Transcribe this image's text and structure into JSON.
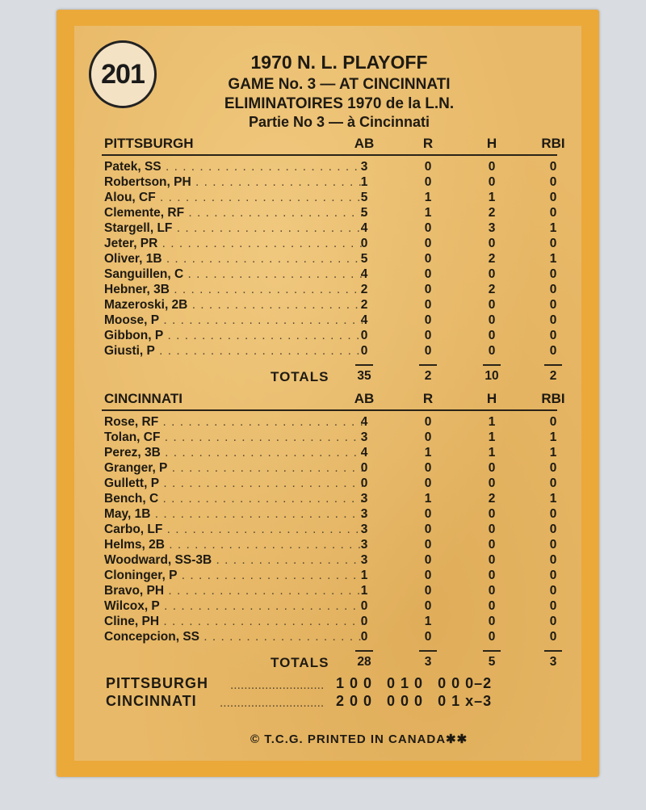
{
  "card_number": "201",
  "title": {
    "line1": "1970 N. L. PLAYOFF",
    "line2": "GAME No. 3 — AT CINCINNATI",
    "line3": "ELIMINATOIRES 1970 de la L.N.",
    "line4": "Partie No 3 — à Cincinnati"
  },
  "columns": [
    "AB",
    "R",
    "H",
    "RBI"
  ],
  "teams": [
    {
      "name": "PITTSBURGH",
      "players": [
        [
          "Patek, SS",
          3,
          0,
          0,
          0
        ],
        [
          "Robertson, PH",
          1,
          0,
          0,
          0
        ],
        [
          "Alou, CF",
          5,
          1,
          1,
          0
        ],
        [
          "Clemente, RF",
          5,
          1,
          2,
          0
        ],
        [
          "Stargell, LF",
          4,
          0,
          3,
          1
        ],
        [
          "Jeter, PR",
          0,
          0,
          0,
          0
        ],
        [
          "Oliver, 1B",
          5,
          0,
          2,
          1
        ],
        [
          "Sanguillen, C",
          4,
          0,
          0,
          0
        ],
        [
          "Hebner, 3B",
          2,
          0,
          2,
          0
        ],
        [
          "Mazeroski, 2B",
          2,
          0,
          0,
          0
        ],
        [
          "Moose, P",
          4,
          0,
          0,
          0
        ],
        [
          "Gibbon, P",
          0,
          0,
          0,
          0
        ],
        [
          "Giusti, P",
          0,
          0,
          0,
          0
        ]
      ],
      "totals_label": "TOTALS",
      "totals": [
        35,
        2,
        10,
        2
      ]
    },
    {
      "name": "CINCINNATI",
      "players": [
        [
          "Rose, RF",
          4,
          0,
          1,
          0
        ],
        [
          "Tolan, CF",
          3,
          0,
          1,
          1
        ],
        [
          "Perez, 3B",
          4,
          1,
          1,
          1
        ],
        [
          "Granger, P",
          0,
          0,
          0,
          0
        ],
        [
          "Gullett, P",
          0,
          0,
          0,
          0
        ],
        [
          "Bench, C",
          3,
          1,
          2,
          1
        ],
        [
          "May, 1B",
          3,
          0,
          0,
          0
        ],
        [
          "Carbo, LF",
          3,
          0,
          0,
          0
        ],
        [
          "Helms, 2B",
          3,
          0,
          0,
          0
        ],
        [
          "Woodward, SS-3B",
          3,
          0,
          0,
          0
        ],
        [
          "Cloninger, P",
          1,
          0,
          0,
          0
        ],
        [
          "Bravo, PH",
          1,
          0,
          0,
          0
        ],
        [
          "Wilcox, P",
          0,
          0,
          0,
          0
        ],
        [
          "Cline, PH",
          0,
          1,
          0,
          0
        ],
        [
          "Concepcion, SS",
          0,
          0,
          0,
          0
        ]
      ],
      "totals_label": "TOTALS",
      "totals": [
        28,
        3,
        5,
        3
      ]
    }
  ],
  "line_score": [
    {
      "team": "PITTSBURGH",
      "innings": "1 0 0   0 1 0   0 0 0–2"
    },
    {
      "team": "CINCINNATI",
      "innings": "2 0 0   0 0 0   0 1 x–3"
    }
  ],
  "footer": "© T.C.G.   PRINTED IN CANADA✱✱"
}
